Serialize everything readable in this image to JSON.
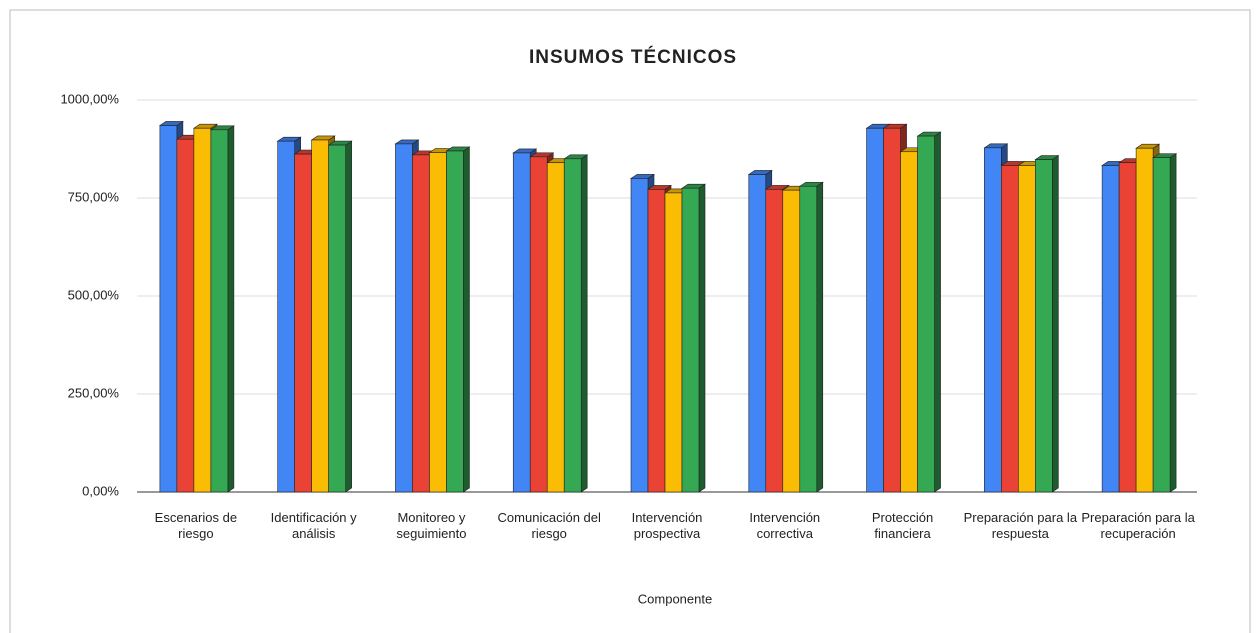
{
  "chart_data": {
    "type": "bar3d",
    "title": "INSUMOS TÉCNICOS",
    "x_label": "Componente",
    "categories": [
      "Escenarios de riesgo",
      "Identificación y análisis",
      "Monitoreo y seguimiento",
      "Comunicación del riesgo",
      "Intervención prospectiva",
      "Intervención correctiva",
      "Protección financiera",
      "Preparación para la respuesta",
      "Preparación para la recuperación"
    ],
    "series": [
      {
        "color": "#4285f4",
        "values": [
          935,
          895,
          888,
          865,
          800,
          810,
          928,
          878,
          833
        ]
      },
      {
        "color": "#ea4335",
        "values": [
          900,
          862,
          860,
          855,
          772,
          772,
          928,
          833,
          840
        ]
      },
      {
        "color": "#fbbc04",
        "values": [
          928,
          898,
          866,
          840,
          763,
          770,
          868,
          833,
          877
        ]
      },
      {
        "color": "#34a853",
        "values": [
          924,
          885,
          870,
          850,
          775,
          780,
          908,
          848,
          853
        ]
      }
    ],
    "ylim": [
      0,
      1000
    ],
    "yticks": [
      {
        "value": 0,
        "label": "0,00%"
      },
      {
        "value": 250,
        "label": "250,00%"
      },
      {
        "value": 500,
        "label": "500,00%"
      },
      {
        "value": 750,
        "label": "750,00%"
      },
      {
        "value": 1000,
        "label": "1000,00%"
      }
    ],
    "grid": true
  }
}
